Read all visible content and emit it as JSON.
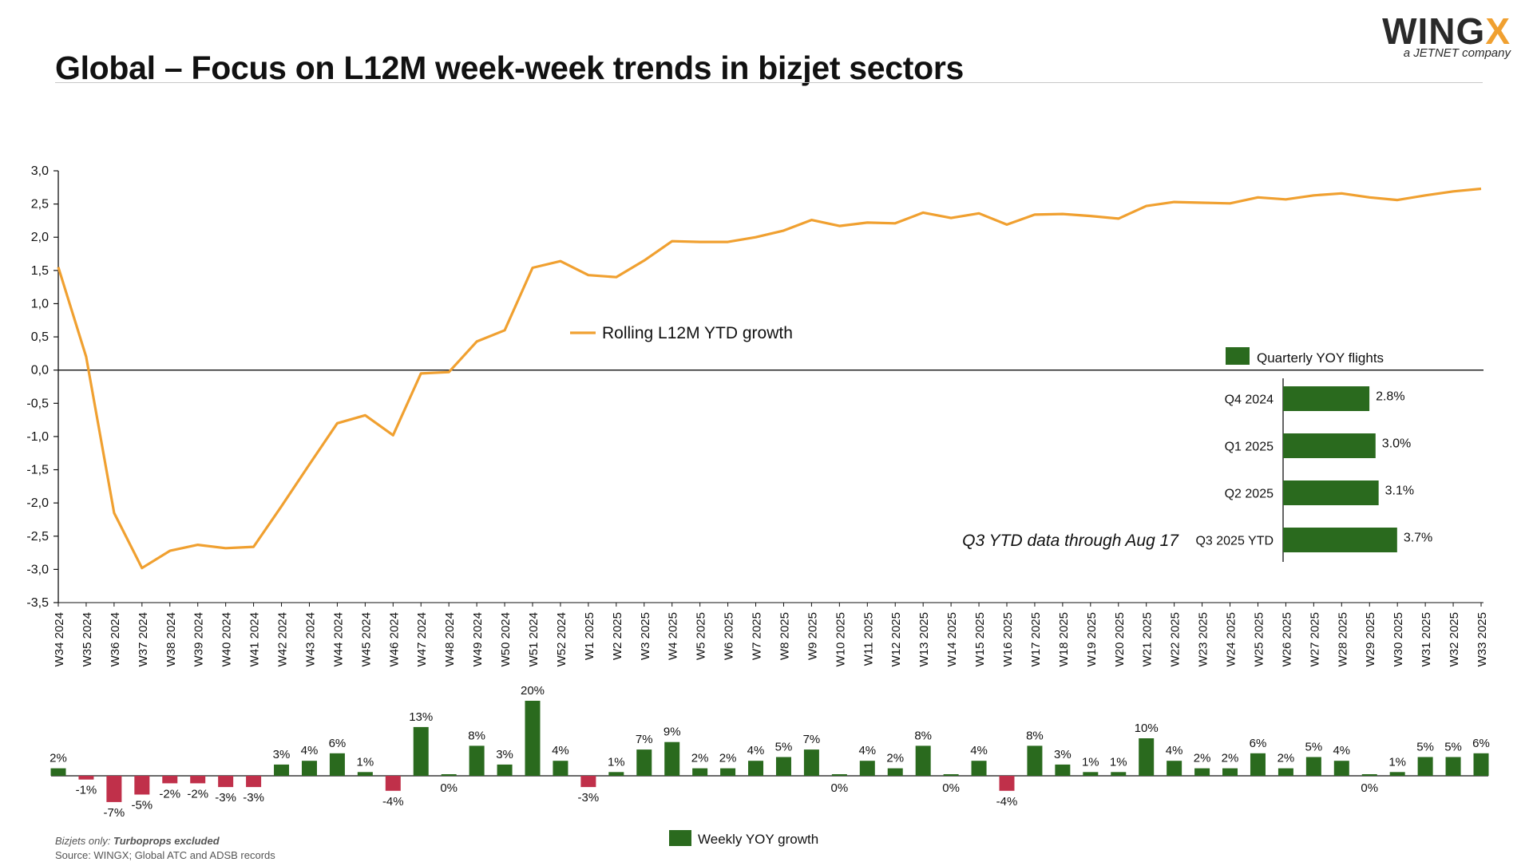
{
  "title": "Global – Focus on L12M week-week trends in bizjet sectors",
  "logo": {
    "main": "WING",
    "accent": "X",
    "sub": "a JETNET company"
  },
  "footnote": {
    "prefix": "Bizjets only: ",
    "emphasis": "Turboprops excluded",
    "source": "Source: WINGX; Global ATC and ADSB records"
  },
  "colors": {
    "line": "#f0a030",
    "positive": "#2a6a1e",
    "negative": "#c0304a",
    "axis": "#111111"
  },
  "chart_data": [
    {
      "type": "line",
      "series": [
        {
          "name": "Rolling L12M YTD growth",
          "values": [
            1.55,
            0.2,
            -2.15,
            -2.98,
            -2.72,
            -2.63,
            -2.68,
            -2.66,
            -2.05,
            -1.42,
            -0.8,
            -0.68,
            -0.98,
            -0.05,
            -0.03,
            0.43,
            0.6,
            1.54,
            1.64,
            1.43,
            1.4,
            1.65,
            1.94,
            1.93,
            1.93,
            2.0,
            2.1,
            2.26,
            2.17,
            2.22,
            2.21,
            2.37,
            2.29,
            2.36,
            2.19,
            2.34,
            2.35,
            2.32,
            2.28,
            2.47,
            2.53,
            2.52,
            2.51,
            2.6,
            2.57,
            2.63,
            2.66,
            2.6,
            2.56,
            2.63,
            2.69,
            2.73
          ]
        }
      ],
      "categories": [
        "W34 2024",
        "W35 2024",
        "W36 2024",
        "W37 2024",
        "W38 2024",
        "W39 2024",
        "W40 2024",
        "W41 2024",
        "W42 2024",
        "W43 2024",
        "W44 2024",
        "W45 2024",
        "W46 2024",
        "W47 2024",
        "W48 2024",
        "W49 2024",
        "W50 2024",
        "W51 2024",
        "W52 2024",
        "W1 2025",
        "W2 2025",
        "W3 2025",
        "W4 2025",
        "W5 2025",
        "W6 2025",
        "W7 2025",
        "W8 2025",
        "W9 2025",
        "W10 2025",
        "W11 2025",
        "W12 2025",
        "W13 2025",
        "W14 2025",
        "W15 2025",
        "W16 2025",
        "W17 2025",
        "W18 2025",
        "W19 2025",
        "W20 2025",
        "W21 2025",
        "W22 2025",
        "W23 2025",
        "W24 2025",
        "W25 2025",
        "W26 2025",
        "W27 2025",
        "W28 2025",
        "W29 2025",
        "W30 2025",
        "W31 2025",
        "W32 2025",
        "W33 2025"
      ],
      "ylim": [
        -3.5,
        3.0
      ],
      "yticks": [
        "3,0",
        "2,5",
        "2,0",
        "1,5",
        "1,0",
        "0,5",
        "0,0",
        "-0,5",
        "-1,0",
        "-1,5",
        "-2,0",
        "-2,5",
        "-3,0",
        "-3,5"
      ],
      "legend": "center"
    },
    {
      "type": "bar",
      "series": [
        {
          "name": "Weekly YOY growth",
          "values": [
            2,
            -1,
            -7,
            -5,
            -2,
            -2,
            -3,
            -3,
            3,
            4,
            6,
            1,
            -4,
            13,
            0,
            8,
            3,
            20,
            4,
            -3,
            1,
            7,
            9,
            2,
            2,
            4,
            5,
            7,
            0,
            4,
            2,
            8,
            0,
            4,
            -4,
            8,
            3,
            1,
            1,
            10,
            4,
            2,
            2,
            6,
            2,
            5,
            4,
            0,
            1,
            5,
            5,
            6
          ],
          "labels": [
            "2%",
            "-1%",
            "-7%",
            "-5%",
            "-2%",
            "-2%",
            "-3%",
            "-3%",
            "3%",
            "4%",
            "6%",
            "1%",
            "-4%",
            "13%",
            "0%",
            "8%",
            "3%",
            "20%",
            "4%",
            "-3%",
            "1%",
            "7%",
            "9%",
            "2%",
            "2%",
            "4%",
            "5%",
            "7%",
            "0%",
            "4%",
            "2%",
            "8%",
            "0%",
            "4%",
            "-4%",
            "8%",
            "3%",
            "1%",
            "1%",
            "10%",
            "4%",
            "2%",
            "2%",
            "6%",
            "2%",
            "5%",
            "4%",
            "0%",
            "1%",
            "5%",
            "5%",
            "6%"
          ]
        }
      ],
      "legend": "bottom"
    },
    {
      "type": "bar",
      "orientation": "horizontal",
      "series": [
        {
          "name": "Quarterly YOY flights",
          "values": [
            2.8,
            3.0,
            3.1,
            3.7
          ]
        }
      ],
      "categories": [
        "Q4 2024",
        "Q1 2025",
        "Q2 2025",
        "Q3 2025 YTD"
      ],
      "labels": [
        "2.8%",
        "3.0%",
        "3.1%",
        "3.7%"
      ],
      "annotation": "Q3 YTD data through Aug 17",
      "legend": "top"
    }
  ]
}
